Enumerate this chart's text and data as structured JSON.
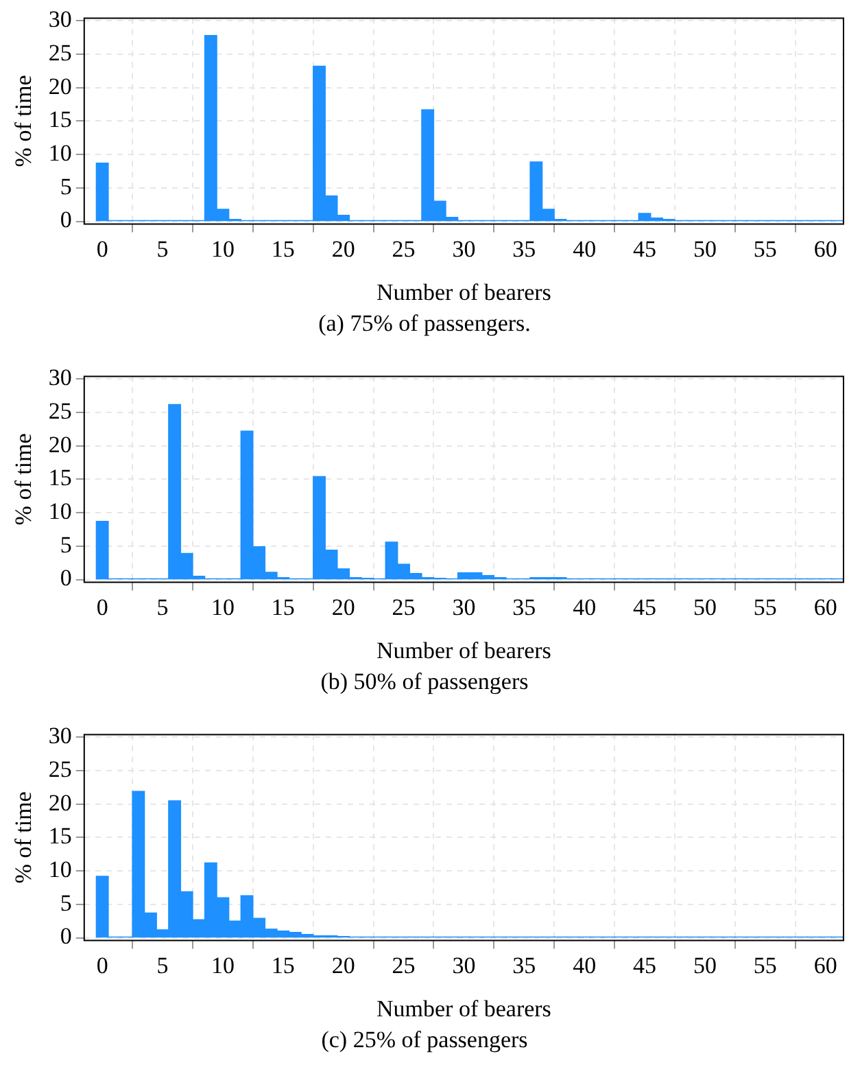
{
  "chart_data": [
    {
      "type": "histogram",
      "xlabel": "Number of bearers",
      "ylabel": "% of time",
      "annotations": [
        "(a) 75% of passengers."
      ],
      "color": "#1e90ff",
      "grid": true,
      "bins": [
        -0.5,
        0.5,
        1.5,
        2.5,
        3.5,
        4.5,
        5.5,
        6.5,
        7.5,
        8.5,
        9.5,
        10.5,
        11.5,
        12.5,
        13.5,
        14.5,
        15.5,
        16.5,
        17.5,
        18.5,
        19.5,
        20.5,
        21.5,
        22.5,
        23.5,
        24.5,
        25.5,
        26.5,
        27.5,
        28.5,
        29.5,
        30.5,
        31.5,
        32.5,
        33.5,
        34.5,
        35.5,
        36.5,
        37.5,
        38.5,
        39.5,
        40.5,
        41.5,
        42.5,
        43.5,
        44.5,
        45.5,
        46.5,
        47.5,
        48.5,
        49.5,
        50.5,
        51.5,
        52.5,
        53.5,
        54.5,
        55.5,
        56.5,
        57.5,
        58.5,
        59.5,
        60.5,
        61.5
      ],
      "values": [
        8.7,
        0.1,
        0.1,
        0.1,
        0.1,
        0.1,
        0.1,
        0.1,
        0.1,
        27.8,
        1.8,
        0.3,
        0.1,
        0.1,
        0.1,
        0.1,
        0.1,
        0.1,
        23.2,
        3.8,
        0.9,
        0.1,
        0.1,
        0.1,
        0.1,
        0.1,
        0.1,
        16.7,
        3.0,
        0.6,
        0.1,
        0.1,
        0.1,
        0.1,
        0.1,
        0.1,
        8.9,
        1.8,
        0.3,
        0.1,
        0.1,
        0.1,
        0.1,
        0.1,
        0.1,
        1.2,
        0.5,
        0.3,
        0.1,
        0.1,
        0.1,
        0.1,
        0.1,
        0.1,
        0.1,
        0.1,
        0.1,
        0.1,
        0.1,
        0.1,
        0.1,
        0.1
      ],
      "xlim": [
        -1.5,
        61.5
      ],
      "xticks": [
        0,
        5,
        10,
        15,
        20,
        25,
        30,
        35,
        40,
        45,
        50,
        55,
        60
      ],
      "ylim": [
        -0.4,
        30.4
      ],
      "yticks": [
        0,
        5,
        10,
        15,
        20,
        25,
        30
      ]
    },
    {
      "type": "histogram",
      "xlabel": "Number of bearers",
      "ylabel": "% of time",
      "annotations": [
        "(b) 50% of passengers"
      ],
      "color": "#1e90ff",
      "grid": true,
      "bins": [
        -0.5,
        0.5,
        1.5,
        2.5,
        3.5,
        4.5,
        5.5,
        6.5,
        7.5,
        8.5,
        9.5,
        10.5,
        11.5,
        12.5,
        13.5,
        14.5,
        15.5,
        16.5,
        17.5,
        18.5,
        19.5,
        20.5,
        21.5,
        22.5,
        23.5,
        24.5,
        25.5,
        26.5,
        27.5,
        28.5,
        29.5,
        30.5,
        31.5,
        32.5,
        33.5,
        34.5,
        35.5,
        36.5,
        37.5,
        38.5,
        39.5,
        40.5,
        41.5,
        42.5,
        43.5,
        44.5,
        45.5,
        46.5,
        47.5,
        48.5,
        49.5,
        50.5,
        51.5,
        52.5,
        53.5,
        54.5,
        55.5,
        56.5,
        57.5,
        58.5,
        59.5,
        60.5,
        61.5
      ],
      "values": [
        8.7,
        0.1,
        0.1,
        0.1,
        0.1,
        0.1,
        26.2,
        3.9,
        0.5,
        0.1,
        0.1,
        0.1,
        22.2,
        4.9,
        1.1,
        0.3,
        0.1,
        0.1,
        15.4,
        4.4,
        1.6,
        0.3,
        0.2,
        0.1,
        5.6,
        2.3,
        0.9,
        0.3,
        0.2,
        0.1,
        1.0,
        1.0,
        0.6,
        0.3,
        0.1,
        0.1,
        0.3,
        0.3,
        0.3,
        0.1,
        0.1,
        0.1,
        0.1,
        0.1,
        0.1,
        0.1,
        0.1,
        0.1,
        0.1,
        0.1,
        0.1,
        0.1,
        0.1,
        0.1,
        0.1,
        0.1,
        0.1,
        0.1,
        0.1,
        0.1,
        0.1,
        0.1
      ],
      "xlim": [
        -1.5,
        61.5
      ],
      "xticks": [
        0,
        5,
        10,
        15,
        20,
        25,
        30,
        35,
        40,
        45,
        50,
        55,
        60
      ],
      "ylim": [
        -0.4,
        30.4
      ],
      "yticks": [
        0,
        5,
        10,
        15,
        20,
        25,
        30
      ]
    },
    {
      "type": "histogram",
      "xlabel": "Number of bearers",
      "ylabel": "% of time",
      "annotations": [
        "(c) 25% of passengers"
      ],
      "color": "#1e90ff",
      "grid": true,
      "bins": [
        -0.5,
        0.5,
        1.5,
        2.5,
        3.5,
        4.5,
        5.5,
        6.5,
        7.5,
        8.5,
        9.5,
        10.5,
        11.5,
        12.5,
        13.5,
        14.5,
        15.5,
        16.5,
        17.5,
        18.5,
        19.5,
        20.5,
        21.5,
        22.5,
        23.5,
        24.5,
        25.5,
        26.5,
        27.5,
        28.5,
        29.5,
        30.5,
        31.5,
        32.5,
        33.5,
        34.5,
        35.5,
        36.5,
        37.5,
        38.5,
        39.5,
        40.5,
        41.5,
        42.5,
        43.5,
        44.5,
        45.5,
        46.5,
        47.5,
        48.5,
        49.5,
        50.5,
        51.5,
        52.5,
        53.5,
        54.5,
        55.5,
        56.5,
        57.5,
        58.5,
        59.5,
        60.5,
        61.5
      ],
      "values": [
        9.2,
        0.1,
        0.1,
        21.9,
        3.7,
        1.2,
        20.5,
        6.9,
        2.7,
        11.2,
        6.0,
        2.5,
        6.3,
        2.9,
        1.3,
        1.0,
        0.8,
        0.5,
        0.3,
        0.3,
        0.2,
        0.1,
        0.1,
        0.1,
        0.1,
        0.1,
        0.1,
        0.1,
        0.1,
        0.1,
        0.1,
        0.1,
        0.1,
        0.1,
        0.1,
        0.1,
        0.1,
        0.1,
        0.1,
        0.1,
        0.1,
        0.1,
        0.1,
        0.1,
        0.1,
        0.1,
        0.1,
        0.1,
        0.1,
        0.1,
        0.1,
        0.1,
        0.1,
        0.1,
        0.1,
        0.1,
        0.1,
        0.1,
        0.1,
        0.1,
        0.1,
        0.1
      ],
      "xlim": [
        -1.5,
        61.5
      ],
      "xticks": [
        0,
        5,
        10,
        15,
        20,
        25,
        30,
        35,
        40,
        45,
        50,
        55,
        60
      ],
      "ylim": [
        -0.4,
        30.4
      ],
      "yticks": [
        0,
        5,
        10,
        15,
        20,
        25,
        30
      ]
    }
  ]
}
